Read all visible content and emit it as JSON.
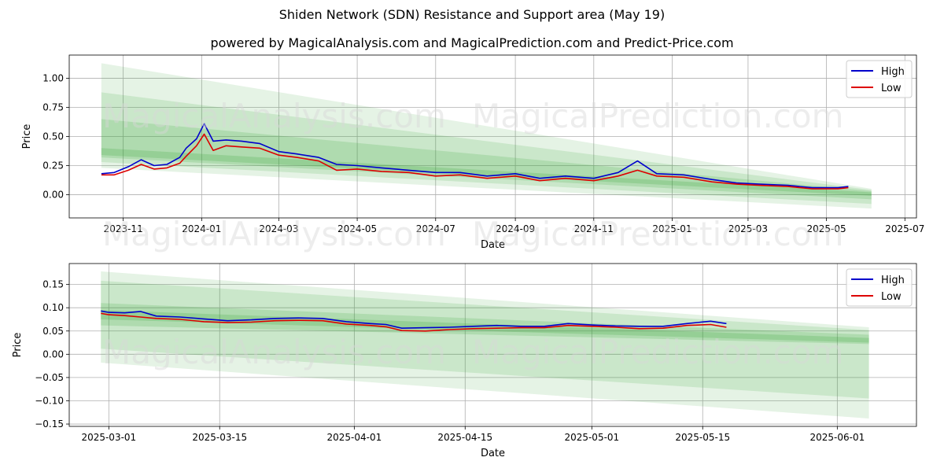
{
  "header": {
    "title": "Shiden Network (SDN) Resistance and Support area (May 19)",
    "subtitle": "powered by MagicalAnalysis.com and MagicalPrediction.com and Predict-Price.com"
  },
  "watermarks": [
    "MagicalAnalysis.com",
    "MagicalPrediction.com"
  ],
  "colors": {
    "high": "#0000cc",
    "low": "#dd0000",
    "band": "#2ca02c",
    "grid": "#b0b0b0"
  },
  "chart_data": [
    {
      "type": "line",
      "xlabel": "Date",
      "ylabel": "Price",
      "x_ticks": [
        "2023-11",
        "2024-01",
        "2024-03",
        "2024-05",
        "2024-07",
        "2024-09",
        "2024-11",
        "2025-01",
        "2025-03",
        "2025-05",
        "2025-07"
      ],
      "y_ticks": [
        "0.00",
        "0.25",
        "0.50",
        "0.75",
        "1.00"
      ],
      "xlim": [
        "2023-09-20",
        "2025-07-10"
      ],
      "ylim": [
        -0.2,
        1.2
      ],
      "grid": true,
      "legend": "top-right",
      "series": [
        {
          "name": "High",
          "color": "#0000cc",
          "x": [
            "2023-10-15",
            "2023-10-25",
            "2023-11-05",
            "2023-11-15",
            "2023-11-25",
            "2023-12-05",
            "2023-12-15",
            "2023-12-20",
            "2023-12-28",
            "2024-01-03",
            "2024-01-10",
            "2024-01-20",
            "2024-02-01",
            "2024-02-15",
            "2024-03-01",
            "2024-03-15",
            "2024-04-01",
            "2024-04-15",
            "2024-05-01",
            "2024-05-20",
            "2024-06-10",
            "2024-07-01",
            "2024-07-20",
            "2024-08-10",
            "2024-09-01",
            "2024-09-20",
            "2024-10-10",
            "2024-11-01",
            "2024-11-20",
            "2024-12-05",
            "2024-12-20",
            "2025-01-10",
            "2025-02-01",
            "2025-02-20",
            "2025-03-10",
            "2025-04-01",
            "2025-04-20",
            "2025-05-10",
            "2025-05-18"
          ],
          "values": [
            0.18,
            0.19,
            0.24,
            0.3,
            0.25,
            0.26,
            0.32,
            0.4,
            0.48,
            0.61,
            0.46,
            0.47,
            0.46,
            0.44,
            0.37,
            0.35,
            0.32,
            0.26,
            0.25,
            0.23,
            0.21,
            0.19,
            0.19,
            0.16,
            0.18,
            0.14,
            0.16,
            0.14,
            0.19,
            0.29,
            0.18,
            0.17,
            0.13,
            0.1,
            0.09,
            0.08,
            0.06,
            0.06,
            0.07
          ]
        },
        {
          "name": "Low",
          "color": "#dd0000",
          "x": [
            "2023-10-15",
            "2023-10-25",
            "2023-11-05",
            "2023-11-15",
            "2023-11-25",
            "2023-12-05",
            "2023-12-15",
            "2023-12-20",
            "2023-12-28",
            "2024-01-03",
            "2024-01-10",
            "2024-01-20",
            "2024-02-01",
            "2024-02-15",
            "2024-03-01",
            "2024-03-15",
            "2024-04-01",
            "2024-04-15",
            "2024-05-01",
            "2024-05-20",
            "2024-06-10",
            "2024-07-01",
            "2024-07-20",
            "2024-08-10",
            "2024-09-01",
            "2024-09-20",
            "2024-10-10",
            "2024-11-01",
            "2024-11-20",
            "2024-12-05",
            "2024-12-20",
            "2025-01-10",
            "2025-02-01",
            "2025-02-20",
            "2025-03-10",
            "2025-04-01",
            "2025-04-20",
            "2025-05-10",
            "2025-05-18"
          ],
          "values": [
            0.17,
            0.17,
            0.21,
            0.26,
            0.22,
            0.23,
            0.27,
            0.33,
            0.42,
            0.52,
            0.38,
            0.42,
            0.41,
            0.4,
            0.34,
            0.32,
            0.29,
            0.21,
            0.22,
            0.2,
            0.19,
            0.16,
            0.17,
            0.14,
            0.16,
            0.12,
            0.14,
            0.12,
            0.16,
            0.21,
            0.16,
            0.15,
            0.11,
            0.09,
            0.08,
            0.07,
            0.05,
            0.05,
            0.06
          ]
        }
      ],
      "bands": [
        {
          "x": [
            "2023-10-15",
            "2025-06-05"
          ],
          "upper": [
            1.13,
            0.05
          ],
          "lower": [
            0.23,
            -0.12
          ]
        },
        {
          "x": [
            "2023-10-15",
            "2025-06-05"
          ],
          "upper": [
            0.88,
            0.04
          ],
          "lower": [
            0.28,
            -0.08
          ]
        },
        {
          "x": [
            "2023-10-15",
            "2025-06-05"
          ],
          "upper": [
            0.65,
            0.03
          ],
          "lower": [
            0.32,
            -0.04
          ]
        },
        {
          "x": [
            "2023-10-15",
            "2025-06-05"
          ],
          "upper": [
            0.4,
            0.02
          ],
          "lower": [
            0.34,
            -0.01
          ]
        }
      ]
    },
    {
      "type": "line",
      "xlabel": "Date",
      "ylabel": "Price",
      "x_ticks": [
        "2025-03-01",
        "2025-03-15",
        "2025-04-01",
        "2025-04-15",
        "2025-05-01",
        "2025-05-15",
        "2025-06-01"
      ],
      "y_ticks": [
        "−0.15",
        "−0.10",
        "−0.05",
        "0.00",
        "0.05",
        "0.10",
        "0.15"
      ],
      "xlim": [
        "2025-02-24",
        "2025-06-11"
      ],
      "ylim": [
        -0.155,
        0.195
      ],
      "grid": true,
      "legend": "top-right",
      "series": [
        {
          "name": "High",
          "color": "#0000cc",
          "x": [
            "2025-02-28",
            "2025-03-01",
            "2025-03-03",
            "2025-03-05",
            "2025-03-07",
            "2025-03-10",
            "2025-03-13",
            "2025-03-16",
            "2025-03-19",
            "2025-03-22",
            "2025-03-25",
            "2025-03-28",
            "2025-03-31",
            "2025-04-03",
            "2025-04-05",
            "2025-04-07",
            "2025-04-10",
            "2025-04-13",
            "2025-04-16",
            "2025-04-19",
            "2025-04-22",
            "2025-04-25",
            "2025-04-28",
            "2025-05-01",
            "2025-05-04",
            "2025-05-07",
            "2025-05-10",
            "2025-05-13",
            "2025-05-16",
            "2025-05-18"
          ],
          "values": [
            0.093,
            0.09,
            0.089,
            0.092,
            0.082,
            0.08,
            0.076,
            0.072,
            0.074,
            0.077,
            0.078,
            0.077,
            0.07,
            0.066,
            0.064,
            0.056,
            0.057,
            0.058,
            0.06,
            0.062,
            0.06,
            0.06,
            0.066,
            0.063,
            0.061,
            0.06,
            0.06,
            0.066,
            0.071,
            0.066
          ]
        },
        {
          "name": "Low",
          "color": "#dd0000",
          "x": [
            "2025-02-28",
            "2025-03-01",
            "2025-03-03",
            "2025-03-05",
            "2025-03-07",
            "2025-03-10",
            "2025-03-13",
            "2025-03-16",
            "2025-03-19",
            "2025-03-22",
            "2025-03-25",
            "2025-03-28",
            "2025-03-31",
            "2025-04-03",
            "2025-04-05",
            "2025-04-07",
            "2025-04-10",
            "2025-04-13",
            "2025-04-16",
            "2025-04-19",
            "2025-04-22",
            "2025-04-25",
            "2025-04-28",
            "2025-05-01",
            "2025-05-04",
            "2025-05-07",
            "2025-05-10",
            "2025-05-13",
            "2025-05-16",
            "2025-05-18"
          ],
          "values": [
            0.088,
            0.085,
            0.083,
            0.08,
            0.077,
            0.075,
            0.07,
            0.068,
            0.069,
            0.072,
            0.073,
            0.072,
            0.065,
            0.062,
            0.059,
            0.051,
            0.05,
            0.053,
            0.055,
            0.056,
            0.057,
            0.057,
            0.062,
            0.06,
            0.058,
            0.055,
            0.056,
            0.062,
            0.064,
            0.058
          ]
        }
      ],
      "bands": [
        {
          "x": [
            "2025-02-28",
            "2025-06-05"
          ],
          "upper": [
            0.178,
            0.058
          ],
          "lower": [
            -0.018,
            -0.138
          ]
        },
        {
          "x": [
            "2025-02-28",
            "2025-06-05"
          ],
          "upper": [
            0.158,
            0.052
          ],
          "lower": [
            0.012,
            -0.095
          ]
        },
        {
          "x": [
            "2025-02-28",
            "2025-06-05"
          ],
          "upper": [
            0.11,
            0.042
          ],
          "lower": [
            0.062,
            0.022
          ]
        },
        {
          "x": [
            "2025-02-28",
            "2025-06-05"
          ],
          "upper": [
            0.095,
            0.035
          ],
          "lower": [
            0.075,
            0.025
          ]
        }
      ]
    }
  ]
}
